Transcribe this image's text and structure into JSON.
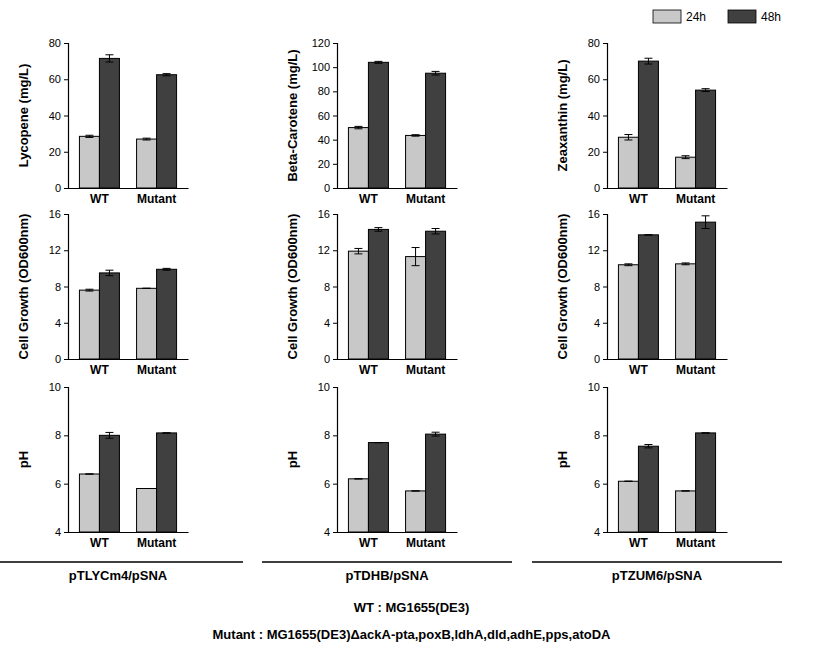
{
  "chart_data": [
    {
      "type": "bar",
      "y_label": "Lycopene (mg/L)",
      "categories": [
        "WT",
        "Mutant"
      ],
      "series": [
        {
          "name": "24h",
          "color": "#c8c8c8",
          "values": [
            28.5,
            27
          ],
          "errors": [
            0.6,
            0.5
          ]
        },
        {
          "name": "48h",
          "color": "#404040",
          "values": [
            71.5,
            62.5
          ],
          "errors": [
            2,
            0.6
          ]
        }
      ],
      "ylim": [
        0,
        80
      ],
      "yticks": [
        0,
        20,
        40,
        60,
        80
      ]
    },
    {
      "type": "bar",
      "y_label": "Beta-Carotene (mg/L)",
      "categories": [
        "WT",
        "Mutant"
      ],
      "series": [
        {
          "name": "24h",
          "color": "#c8c8c8",
          "values": [
            50,
            43.5
          ],
          "errors": [
            1,
            0.6
          ]
        },
        {
          "name": "48h",
          "color": "#404040",
          "values": [
            104,
            95
          ],
          "errors": [
            0.8,
            1.5
          ]
        }
      ],
      "ylim": [
        0,
        120
      ],
      "yticks": [
        0,
        20,
        40,
        60,
        80,
        100,
        120
      ]
    },
    {
      "type": "bar",
      "y_label": "Zeaxanthin (mg/L)",
      "categories": [
        "WT",
        "Mutant"
      ],
      "series": [
        {
          "name": "24h",
          "color": "#c8c8c8",
          "values": [
            28,
            17
          ],
          "errors": [
            1.5,
            0.8
          ]
        },
        {
          "name": "48h",
          "color": "#404040",
          "values": [
            70,
            54
          ],
          "errors": [
            1.6,
            0.8
          ]
        }
      ],
      "ylim": [
        0,
        80
      ],
      "yticks": [
        0,
        20,
        40,
        60,
        80
      ],
      "legend": "top-right"
    },
    {
      "type": "bar",
      "y_label": "Cell Growth (OD600nm)",
      "categories": [
        "WT",
        "Mutant"
      ],
      "series": [
        {
          "name": "24h",
          "color": "#c8c8c8",
          "values": [
            7.6,
            7.8
          ],
          "errors": [
            0.1,
            0
          ]
        },
        {
          "name": "48h",
          "color": "#404040",
          "values": [
            9.5,
            9.9
          ],
          "errors": [
            0.3,
            0.1
          ]
        }
      ],
      "ylim": [
        0,
        16
      ],
      "yticks": [
        0,
        4,
        8,
        12,
        16
      ]
    },
    {
      "type": "bar",
      "y_label": "Cell Growth (OD600nm)",
      "categories": [
        "WT",
        "Mutant"
      ],
      "series": [
        {
          "name": "24h",
          "color": "#c8c8c8",
          "values": [
            11.9,
            11.3
          ],
          "errors": [
            0.3,
            1
          ]
        },
        {
          "name": "48h",
          "color": "#404040",
          "values": [
            14.3,
            14.1
          ],
          "errors": [
            0.2,
            0.3
          ]
        }
      ],
      "ylim": [
        0,
        16
      ],
      "yticks": [
        0,
        4,
        8,
        12,
        16
      ]
    },
    {
      "type": "bar",
      "y_label": "Cell Growth (OD600nm)",
      "categories": [
        "WT",
        "Mutant"
      ],
      "series": [
        {
          "name": "24h",
          "color": "#c8c8c8",
          "values": [
            10.4,
            10.5
          ],
          "errors": [
            0.1,
            0.1
          ]
        },
        {
          "name": "48h",
          "color": "#404040",
          "values": [
            13.7,
            15.1
          ],
          "errors": [
            0,
            0.7
          ]
        }
      ],
      "ylim": [
        0,
        16
      ],
      "yticks": [
        0,
        4,
        8,
        12,
        16
      ]
    },
    {
      "type": "bar",
      "y_label": "pH",
      "categories": [
        "WT",
        "Mutant"
      ],
      "series": [
        {
          "name": "24h",
          "color": "#c8c8c8",
          "values": [
            6.4,
            5.8
          ],
          "errors": [
            0,
            0
          ]
        },
        {
          "name": "48h",
          "color": "#404040",
          "values": [
            8.0,
            8.1
          ],
          "errors": [
            0.12,
            0
          ]
        }
      ],
      "ylim": [
        4,
        10
      ],
      "yticks": [
        4,
        6,
        8,
        10
      ]
    },
    {
      "type": "bar",
      "y_label": "pH",
      "categories": [
        "WT",
        "Mutant"
      ],
      "series": [
        {
          "name": "24h",
          "color": "#c8c8c8",
          "values": [
            6.2,
            5.7
          ],
          "errors": [
            0,
            0
          ]
        },
        {
          "name": "48h",
          "color": "#404040",
          "values": [
            7.7,
            8.05
          ],
          "errors": [
            0,
            0.08
          ]
        }
      ],
      "ylim": [
        4,
        10
      ],
      "yticks": [
        4,
        6,
        8,
        10
      ]
    },
    {
      "type": "bar",
      "y_label": "pH",
      "categories": [
        "WT",
        "Mutant"
      ],
      "series": [
        {
          "name": "24h",
          "color": "#c8c8c8",
          "values": [
            6.1,
            5.7
          ],
          "errors": [
            0,
            0
          ]
        },
        {
          "name": "48h",
          "color": "#404040",
          "values": [
            7.55,
            8.1
          ],
          "errors": [
            0.07,
            0
          ]
        }
      ],
      "ylim": [
        4,
        10
      ],
      "yticks": [
        4,
        6,
        8,
        10
      ]
    }
  ],
  "column_labels": [
    "pTLYCm4/pSNA",
    "pTDHB/pSNA",
    "pTZUM6/pSNA"
  ],
  "footer": [
    "WT : MG1655(DE3)",
    "Mutant : MG1655(DE3)ΔackA-pta,poxB,ldhA,dld,adhE,pps,atoDA"
  ]
}
